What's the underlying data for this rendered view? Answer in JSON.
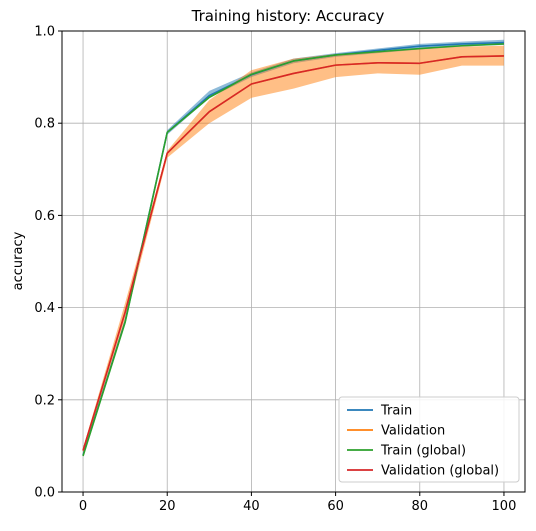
{
  "chart_data": {
    "type": "line",
    "title": "Training history: Accuracy",
    "xlabel": "",
    "ylabel": "accuracy",
    "xlim": [
      -5,
      105
    ],
    "ylim": [
      0.0,
      1.0
    ],
    "x_ticks": [
      0,
      20,
      40,
      60,
      80,
      100
    ],
    "y_ticks": [
      0.0,
      0.2,
      0.4,
      0.6,
      0.8,
      1.0
    ],
    "y_tick_labels": [
      "0.0",
      "0.2",
      "0.4",
      "0.6",
      "0.8",
      "1.0"
    ],
    "grid": true,
    "legend_position": "lower-right",
    "x": [
      0,
      10,
      20,
      30,
      40,
      50,
      60,
      70,
      80,
      90,
      100
    ],
    "series": [
      {
        "name": "Train",
        "color": "#1f77b4",
        "values": [
          0.08,
          0.37,
          0.78,
          0.86,
          0.905,
          0.935,
          0.948,
          0.958,
          0.967,
          0.972,
          0.975
        ],
        "band_low": [
          0.078,
          0.365,
          0.775,
          0.855,
          0.9,
          0.93,
          0.944,
          0.952,
          0.96,
          0.966,
          0.97
        ],
        "band_high": [
          0.082,
          0.375,
          0.785,
          0.87,
          0.91,
          0.94,
          0.952,
          0.962,
          0.972,
          0.977,
          0.981
        ]
      },
      {
        "name": "Validation",
        "color": "#ff7f0e",
        "values": [
          0.09,
          0.39,
          0.735,
          0.825,
          0.885,
          0.908,
          0.926,
          0.931,
          0.93,
          0.944,
          0.946
        ],
        "band_low": [
          0.085,
          0.37,
          0.725,
          0.8,
          0.855,
          0.875,
          0.9,
          0.908,
          0.905,
          0.925,
          0.925
        ],
        "band_high": [
          0.095,
          0.41,
          0.74,
          0.85,
          0.915,
          0.94,
          0.95,
          0.955,
          0.962,
          0.966,
          0.968
        ]
      },
      {
        "name": "Train (global)",
        "color": "#2ca02c",
        "values": [
          0.078,
          0.368,
          0.78,
          0.856,
          0.906,
          0.935,
          0.948,
          0.955,
          0.962,
          0.968,
          0.972
        ]
      },
      {
        "name": "Validation (global)",
        "color": "#d62728",
        "values": [
          0.09,
          0.39,
          0.735,
          0.825,
          0.885,
          0.908,
          0.926,
          0.931,
          0.93,
          0.944,
          0.946
        ]
      }
    ]
  }
}
